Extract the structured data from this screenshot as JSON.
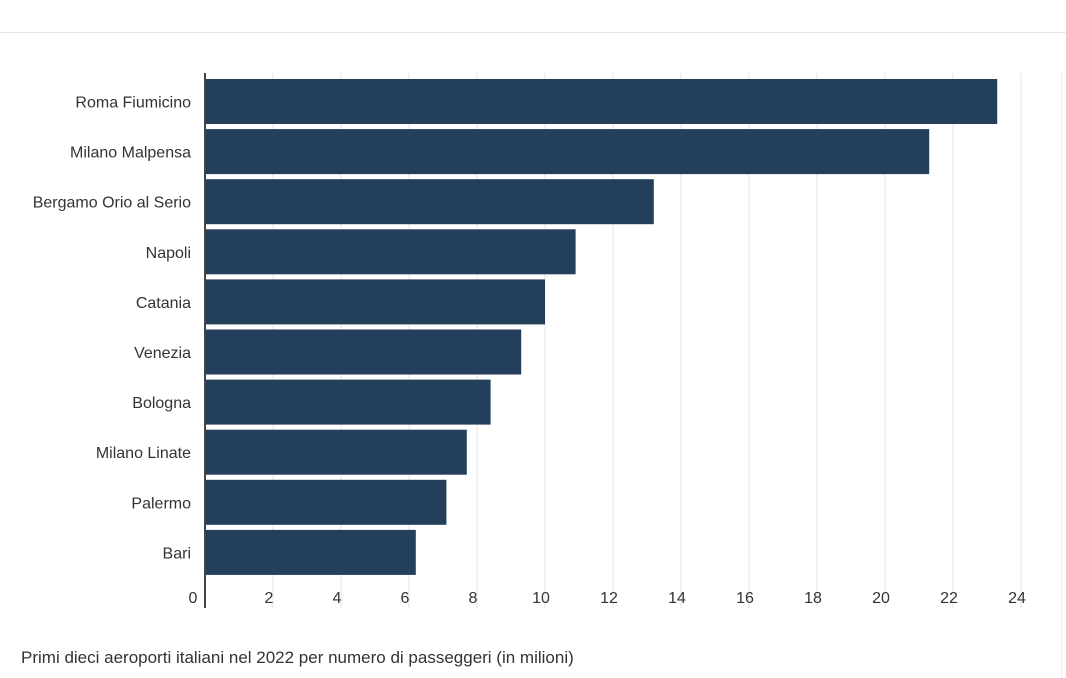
{
  "chart_data": {
    "type": "bar",
    "orientation": "horizontal",
    "categories": [
      "Roma Fiumicino",
      "Milano Malpensa",
      "Bergamo Orio al Serio",
      "Napoli",
      "Catania",
      "Venezia",
      "Bologna",
      "Milano Linate",
      "Palermo",
      "Bari"
    ],
    "values": [
      23.3,
      21.3,
      13.2,
      10.9,
      10.0,
      9.3,
      8.4,
      7.7,
      7.1,
      6.2
    ],
    "xlim": [
      0,
      24
    ],
    "xticks": [
      "0",
      "2",
      "4",
      "6",
      "8",
      "10",
      "12",
      "14",
      "16",
      "18",
      "20",
      "22",
      "24"
    ],
    "grid": true,
    "bar_color": "#233f5c"
  },
  "caption": "Primi dieci aeroporti italiani nel 2022 per numero di passeggeri (in milioni)"
}
